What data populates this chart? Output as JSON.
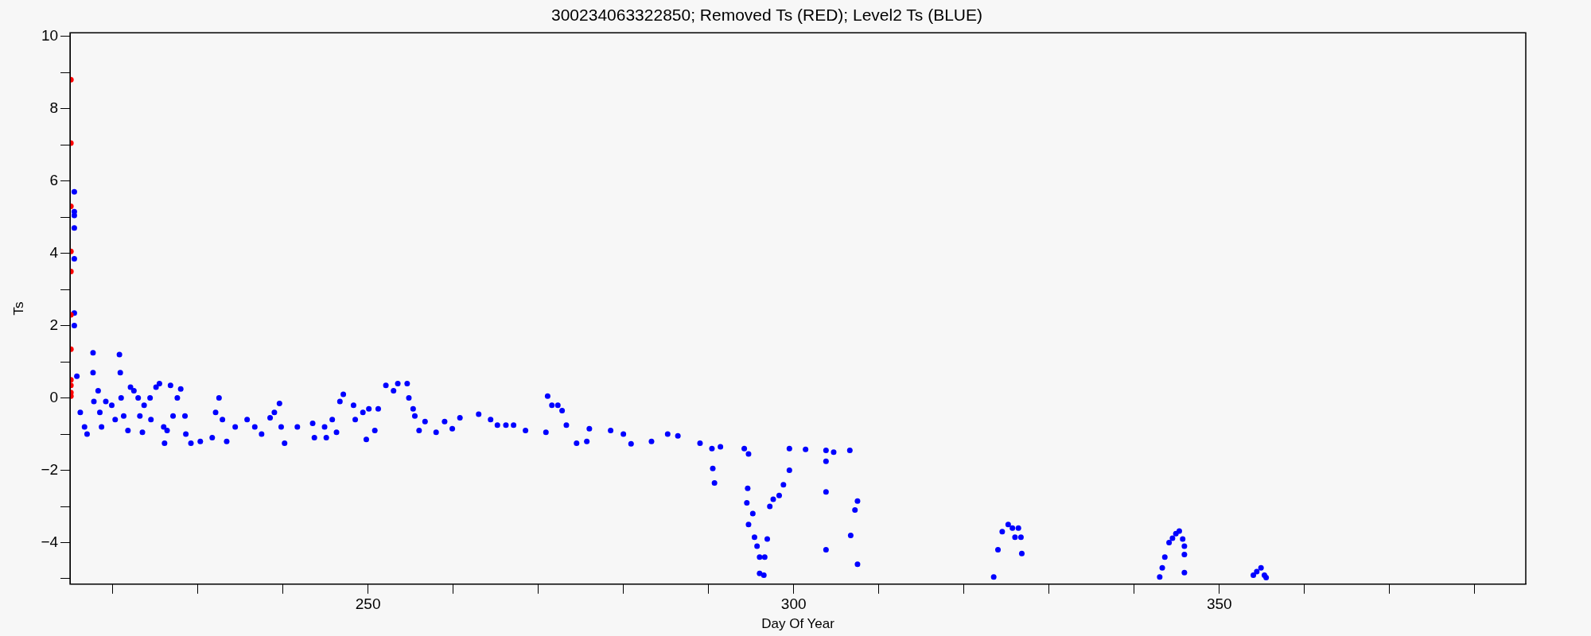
{
  "chart_data": {
    "type": "scatter",
    "title": "300234063322850; Removed Ts (RED); Level2 Ts (BLUE)",
    "xlabel": "Day Of Year",
    "ylabel": "Ts",
    "xlim": [
      215,
      386
    ],
    "ylim": [
      -5.15,
      10.1
    ],
    "grid": false,
    "legend": false,
    "marker": "circle",
    "xticks": [
      {
        "value": 220,
        "label": null
      },
      {
        "value": 230,
        "label": null
      },
      {
        "value": 240,
        "label": null
      },
      250,
      {
        "value": 260,
        "label": null
      },
      {
        "value": 270,
        "label": null
      },
      {
        "value": 280,
        "label": null
      },
      {
        "value": 290,
        "label": null
      },
      300,
      {
        "value": 310,
        "label": null
      },
      {
        "value": 320,
        "label": null
      },
      {
        "value": 330,
        "label": null
      },
      {
        "value": 340,
        "label": null
      },
      350,
      {
        "value": 360,
        "label": null
      },
      {
        "value": 370,
        "label": null
      },
      {
        "value": 380,
        "label": null
      }
    ],
    "yticks": [
      {
        "value": -5,
        "label": null
      },
      -4,
      {
        "value": -3,
        "label": null
      },
      -2,
      {
        "value": -1,
        "label": null
      },
      0,
      {
        "value": 1,
        "label": null
      },
      2,
      {
        "value": 3,
        "label": null
      },
      4,
      {
        "value": 5,
        "label": null
      },
      6,
      {
        "value": 7,
        "label": null
      },
      8,
      {
        "value": 9,
        "label": null
      },
      10
    ],
    "series": [
      {
        "color": "#ff0000",
        "x": [
          215.1,
          215.1,
          215.1,
          215.1,
          215.1,
          215.1,
          215.1,
          215.1,
          215.1,
          215.1,
          215.1
        ],
        "values": [
          8.8,
          7.05,
          5.3,
          4.05,
          3.5,
          2.3,
          1.35,
          0.5,
          0.35,
          0.15,
          0.05
        ]
      },
      {
        "color": "#0000ff",
        "x": [
          215.5,
          215.5,
          215.5,
          215.5,
          215.5,
          215.5,
          215.5,
          215.8,
          216.2,
          216.7,
          217,
          217.7,
          217.7,
          217.8,
          218.3,
          218.5,
          218.7,
          219.2,
          219.9,
          220.3,
          220.8,
          220.9,
          221,
          221.3,
          221.8,
          222.1,
          222.5,
          223,
          223.2,
          223.5,
          223.7,
          224.4,
          224.5,
          225.1,
          225.5,
          226,
          226.1,
          226.4,
          226.8,
          227.1,
          227.6,
          228,
          228.5,
          228.6,
          229.2,
          230.3,
          231.7,
          232.1,
          232.5,
          232.9,
          233.4,
          234.4,
          235.8,
          236.7,
          237.5,
          238.5,
          239,
          239.6,
          239.8,
          240.2,
          241.7,
          243.5,
          243.7,
          244.9,
          245.1,
          245.8,
          246.3,
          246.7,
          247.1,
          248.3,
          248.5,
          249.4,
          249.8,
          250.1,
          250.8,
          251.2,
          252.1,
          253,
          253.5,
          254.6,
          254.8,
          255.3,
          255.5,
          256,
          256.7,
          258,
          259,
          259.9,
          260.8,
          263,
          264.4,
          265.2,
          266.2,
          267.1,
          268.5,
          270.9,
          271.1,
          271.6,
          272.3,
          272.8,
          273.3,
          274.5,
          275.7,
          276,
          278.5,
          280,
          280.9,
          283.3,
          285.2,
          286.4,
          289,
          290.4,
          290.5,
          290.7,
          291.4,
          294.2,
          294.7,
          294.6,
          294.5,
          294.7,
          295.2,
          295.4,
          295.7,
          296,
          296,
          296.5,
          296.6,
          296.9,
          297.2,
          297.6,
          298.3,
          298.8,
          299.5,
          299.5,
          301.4,
          303.8,
          303.8,
          303.8,
          303.8,
          304.7,
          306.6,
          306.7,
          307.2,
          307.5,
          307.5,
          323.5,
          324,
          324.5,
          325.2,
          325.7,
          326,
          326.4,
          326.7,
          326.8,
          343,
          343.3,
          343.6,
          344.1,
          344.5,
          344.9,
          345.3,
          345.7,
          345.9,
          345.9,
          345.9,
          354,
          354.4,
          354.9,
          355.3,
          355.5
        ],
        "values": [
          5.7,
          5.15,
          5.05,
          4.7,
          3.85,
          2.35,
          2,
          0.6,
          -0.4,
          -0.8,
          -1,
          1.25,
          0.7,
          -0.1,
          0.2,
          -0.4,
          -0.8,
          -0.1,
          -0.2,
          -0.6,
          1.2,
          0.7,
          0,
          -0.5,
          -0.9,
          0.3,
          0.2,
          0,
          -0.5,
          -0.95,
          -0.2,
          0,
          -0.6,
          0.3,
          0.4,
          -0.8,
          -1.25,
          -0.9,
          0.35,
          -0.5,
          0,
          0.25,
          -0.5,
          -1,
          -1.25,
          -1.2,
          -1.1,
          -0.4,
          0,
          -0.6,
          -1.2,
          -0.8,
          -0.6,
          -0.8,
          -1,
          -0.55,
          -0.4,
          -0.15,
          -0.8,
          -1.25,
          -0.8,
          -0.7,
          -1.1,
          -0.8,
          -1.1,
          -0.6,
          -0.95,
          -0.1,
          0.1,
          -0.2,
          -0.6,
          -0.4,
          -1.15,
          -0.3,
          -0.9,
          -0.3,
          0.35,
          0.2,
          0.4,
          0.4,
          0,
          -0.3,
          -0.5,
          -0.9,
          -0.65,
          -0.95,
          -0.65,
          -0.85,
          -0.55,
          -0.45,
          -0.6,
          -0.75,
          -0.75,
          -0.75,
          -0.9,
          -0.95,
          0.05,
          -0.2,
          -0.2,
          -0.35,
          -0.75,
          -1.25,
          -1.2,
          -0.85,
          -0.9,
          -1,
          -1.27,
          -1.2,
          -1,
          -1.05,
          -1.25,
          -1.4,
          -1.95,
          -2.35,
          -1.35,
          -1.4,
          -1.55,
          -2.5,
          -2.9,
          -3.5,
          -3.2,
          -3.85,
          -4.1,
          -4.4,
          -4.85,
          -4.9,
          -4.4,
          -3.9,
          -3,
          -2.8,
          -2.7,
          -2.4,
          -2,
          -1.4,
          -1.42,
          -1.45,
          -1.75,
          -2.6,
          -4.2,
          -1.5,
          -1.45,
          -3.8,
          -3.1,
          -2.85,
          -4.6,
          -4.95,
          -4.2,
          -3.7,
          -3.5,
          -3.6,
          -3.85,
          -3.6,
          -3.85,
          -4.3,
          -4.95,
          -4.7,
          -4.4,
          -4,
          -3.88,
          -3.75,
          -3.68,
          -3.9,
          -4.1,
          -4.33,
          -4.83,
          -4.9,
          -4.8,
          -4.7,
          -4.9,
          -4.97
        ]
      }
    ]
  }
}
